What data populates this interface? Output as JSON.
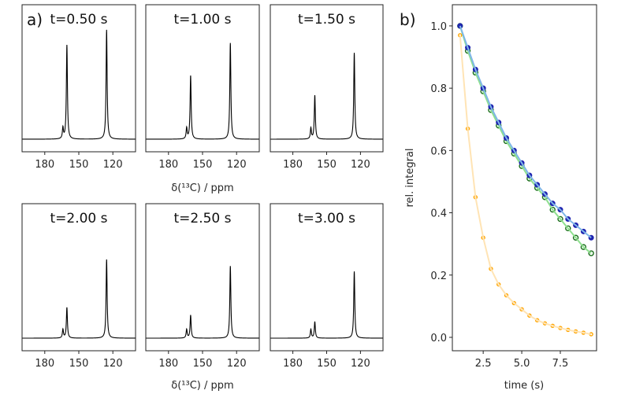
{
  "panel_labels": {
    "a": "a)",
    "b": "b)"
  },
  "chart_data": [
    {
      "type": "line",
      "panel": "a",
      "xlabel": "δ(¹³C) / ppm",
      "xlim": [
        200,
        100
      ],
      "ylim": [
        -0.115,
        1.23
      ],
      "xticks": [
        180,
        150,
        120
      ],
      "yticks": [],
      "grid": false,
      "line_color": "#000000",
      "peak_positions_ppm": [
        164,
        160.5,
        125.5
      ],
      "spectra": [
        {
          "title": "t=0.50 s",
          "peak_heights": [
            0.1,
            0.86,
            1.0
          ]
        },
        {
          "title": "t=1.00 s",
          "peak_heights": [
            0.1,
            0.58,
            0.88
          ]
        },
        {
          "title": "t=1.50 s",
          "peak_heights": [
            0.1,
            0.4,
            0.79
          ]
        },
        {
          "title": "t=2.00 s",
          "peak_heights": [
            0.08,
            0.28,
            0.72
          ]
        },
        {
          "title": "t=2.50 s",
          "peak_heights": [
            0.08,
            0.21,
            0.66
          ]
        },
        {
          "title": "t=3.00 s",
          "peak_heights": [
            0.08,
            0.15,
            0.61
          ]
        }
      ]
    },
    {
      "type": "scatter",
      "panel": "b",
      "xlabel": "time (s)",
      "ylabel": "rel. integral",
      "xlim": [
        0.5,
        9.85
      ],
      "ylim": [
        -0.043,
        1.068
      ],
      "xticks": [
        "2.5",
        "5.0",
        "7.5"
      ],
      "yticks": [
        "0.0",
        "0.2",
        "0.4",
        "0.6",
        "0.8",
        "1.0"
      ],
      "grid": false,
      "x": [
        1.0,
        1.5,
        2.0,
        2.5,
        3.0,
        3.5,
        4.0,
        4.5,
        5.0,
        5.5,
        6.0,
        6.5,
        7.0,
        7.5,
        8.0,
        8.5,
        9.0,
        9.5
      ],
      "series": [
        {
          "marker_color": "#1f24b0",
          "fit_color": "#7fb6e8",
          "marker": "filled",
          "values": [
            1.0,
            0.93,
            0.86,
            0.8,
            0.74,
            0.69,
            0.64,
            0.6,
            0.56,
            0.52,
            0.49,
            0.46,
            0.43,
            0.41,
            0.38,
            0.36,
            0.34,
            0.32
          ]
        },
        {
          "marker_color": "#1a6e1a",
          "fit_color": "#8fe08f",
          "marker": "open",
          "values": [
            1.0,
            0.92,
            0.85,
            0.79,
            0.73,
            0.68,
            0.63,
            0.59,
            0.55,
            0.51,
            0.48,
            0.45,
            0.41,
            0.38,
            0.35,
            0.32,
            0.29,
            0.27
          ]
        },
        {
          "marker_color": "#ffa500",
          "fit_color": "#ffe4b5",
          "marker": "open",
          "values": [
            0.97,
            0.67,
            0.45,
            0.32,
            0.22,
            0.17,
            0.135,
            0.11,
            0.09,
            0.07,
            0.055,
            0.045,
            0.037,
            0.03,
            0.024,
            0.019,
            0.015,
            0.01
          ]
        }
      ]
    }
  ]
}
